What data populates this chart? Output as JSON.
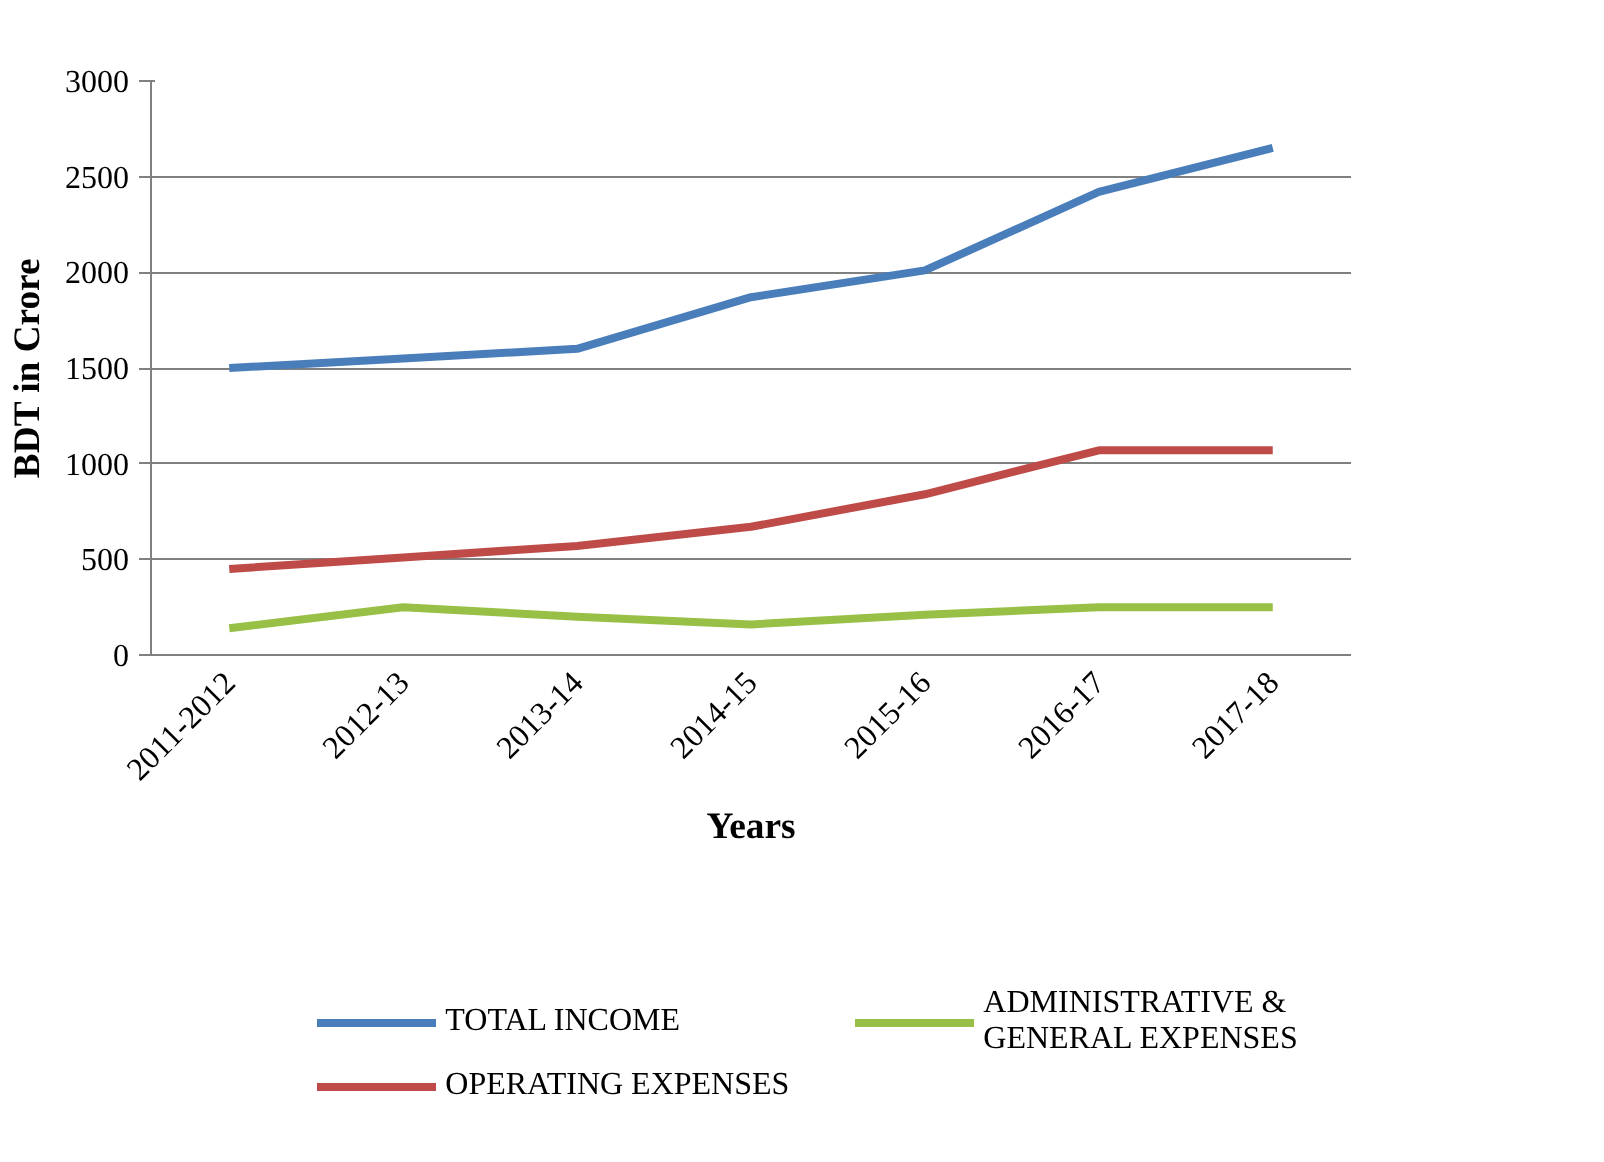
{
  "chart_data": {
    "type": "line",
    "xlabel": "Years",
    "ylabel": "BDT in Crore",
    "categories": [
      "2011-2012",
      "2012-13",
      "2013-14",
      "2014-15",
      "2015-16",
      "2016-17",
      "2017-18"
    ],
    "series": [
      {
        "name": "TOTAL INCOME",
        "color": "#4a7ebb",
        "values": [
          1500,
          1550,
          1600,
          1870,
          2010,
          2420,
          2650
        ]
      },
      {
        "name": "OPERATING EXPENSES",
        "color": "#be4b48",
        "values": [
          450,
          510,
          570,
          670,
          840,
          1070,
          1070
        ]
      },
      {
        "name": "ADMINISTRATIVE & GENERAL EXPENSES",
        "color": "#98c046",
        "values": [
          140,
          250,
          200,
          160,
          210,
          250,
          250
        ]
      }
    ],
    "ylim": [
      0,
      3000
    ],
    "yticks": [
      0,
      500,
      1000,
      1500,
      2000,
      2500,
      3000
    ],
    "grid": "y",
    "legend": "bottom",
    "marker": "none",
    "line_style": "solid"
  }
}
